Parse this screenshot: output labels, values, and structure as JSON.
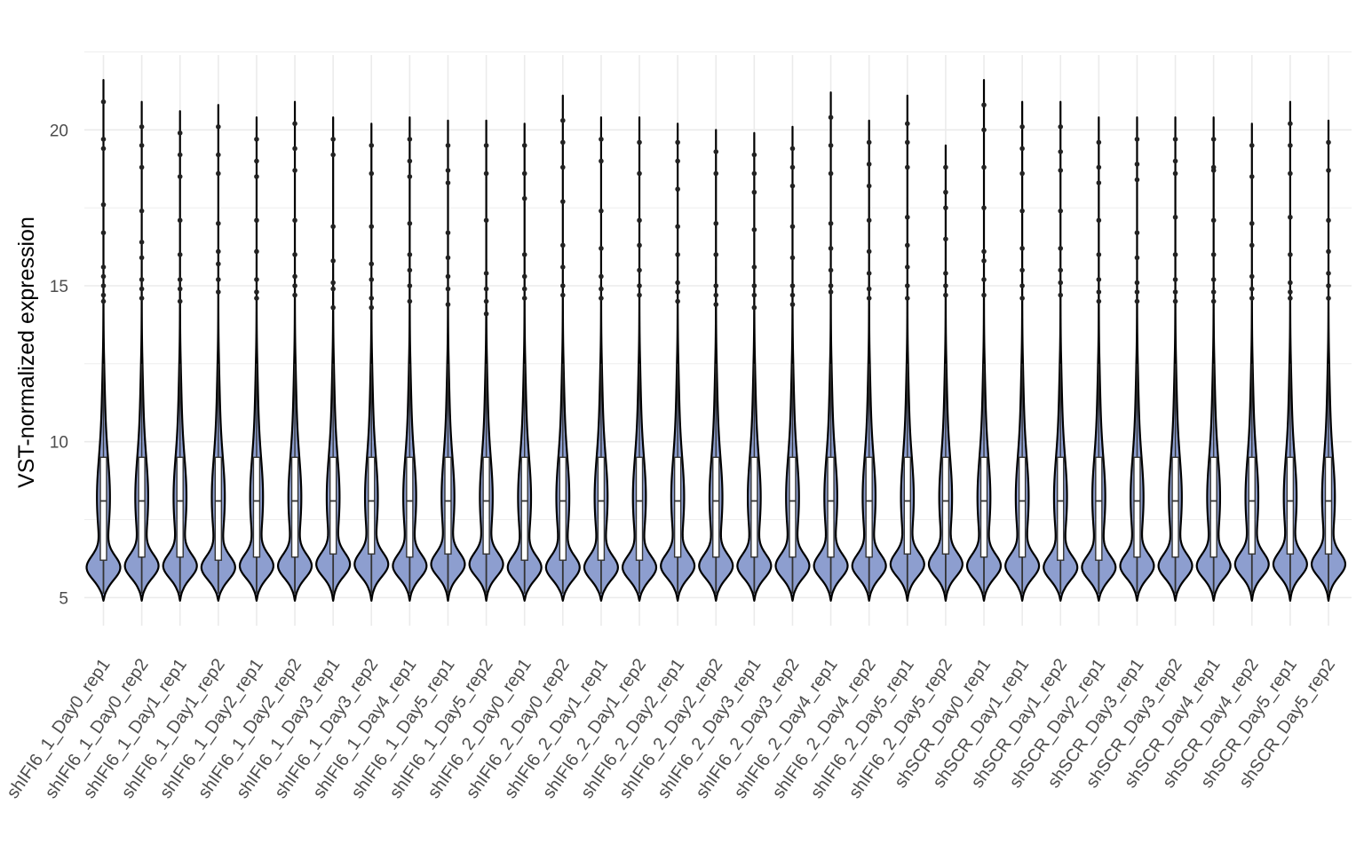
{
  "chart_data": {
    "type": "violin",
    "xlabel": "",
    "ylabel": "VST-normalized expression",
    "ylim": [
      4.1,
      22.4
    ],
    "yticks": [
      5,
      10,
      15,
      20
    ],
    "grid": true,
    "legend": "none",
    "colors": {
      "violin_fill": "#8d9ecf",
      "outline": "#000000",
      "box_fill": "#ffffff",
      "box_stroke": "#333333",
      "grid": "#ebebeb",
      "point": "#222222"
    },
    "categories": [
      "shIFI6_1_Day0_rep1",
      "shIFI6_1_Day0_rep2",
      "shIFI6_1_Day1_rep1",
      "shIFI6_1_Day1_rep2",
      "shIFI6_1_Day2_rep1",
      "shIFI6_1_Day2_rep2",
      "shIFI6_1_Day3_rep1",
      "shIFI6_1_Day3_rep2",
      "shIFI6_1_Day4_rep1",
      "shIFI6_1_Day5_rep1",
      "shIFI6_1_Day5_rep2",
      "shIFI6_2_Day0_rep1",
      "shIFI6_2_Day0_rep2",
      "shIFI6_2_Day1_rep1",
      "shIFI6_2_Day1_rep2",
      "shIFI6_2_Day2_rep1",
      "shIFI6_2_Day2_rep2",
      "shIFI6_2_Day3_rep1",
      "shIFI6_2_Day3_rep2",
      "shIFI6_2_Day4_rep1",
      "shIFI6_2_Day4_rep2",
      "shIFI6_2_Day5_rep1",
      "shIFI6_2_Day5_rep2",
      "shSCR_Day0_rep1",
      "shSCR_Day1_rep1",
      "shSCR_Day1_rep2",
      "shSCR_Day2_rep1",
      "shSCR_Day3_rep1",
      "shSCR_Day3_rep2",
      "shSCR_Day4_rep1",
      "shSCR_Day4_rep2",
      "shSCR_Day5_rep1",
      "shSCR_Day5_rep2"
    ],
    "summary": {
      "min": [
        4.9,
        4.9,
        4.9,
        4.9,
        4.9,
        4.9,
        4.9,
        4.9,
        4.9,
        4.9,
        4.9,
        4.9,
        4.9,
        4.9,
        4.9,
        4.9,
        4.9,
        4.9,
        4.9,
        4.9,
        4.9,
        4.9,
        4.9,
        4.9,
        4.9,
        4.9,
        4.9,
        4.9,
        4.9,
        4.9,
        4.9,
        4.9,
        4.9
      ],
      "q1": [
        6.2,
        6.3,
        6.3,
        6.2,
        6.3,
        6.3,
        6.4,
        6.4,
        6.3,
        6.4,
        6.4,
        6.2,
        6.2,
        6.2,
        6.2,
        6.3,
        6.3,
        6.3,
        6.3,
        6.3,
        6.3,
        6.4,
        6.4,
        6.3,
        6.3,
        6.2,
        6.2,
        6.3,
        6.3,
        6.3,
        6.4,
        6.4,
        6.4
      ],
      "median": [
        8.1,
        8.1,
        8.1,
        8.1,
        8.1,
        8.1,
        8.1,
        8.1,
        8.1,
        8.1,
        8.1,
        8.1,
        8.1,
        8.1,
        8.1,
        8.1,
        8.1,
        8.1,
        8.1,
        8.1,
        8.1,
        8.1,
        8.1,
        8.1,
        8.1,
        8.1,
        8.1,
        8.1,
        8.1,
        8.1,
        8.1,
        8.1,
        8.1
      ],
      "q3": [
        9.5,
        9.5,
        9.5,
        9.5,
        9.5,
        9.5,
        9.5,
        9.5,
        9.5,
        9.5,
        9.5,
        9.5,
        9.5,
        9.5,
        9.5,
        9.5,
        9.5,
        9.5,
        9.5,
        9.5,
        9.5,
        9.5,
        9.5,
        9.5,
        9.5,
        9.5,
        9.5,
        9.5,
        9.5,
        9.5,
        9.5,
        9.5,
        9.5
      ],
      "max": [
        21.6,
        20.9,
        20.6,
        20.8,
        20.4,
        20.9,
        20.4,
        20.2,
        20.4,
        20.3,
        20.3,
        20.2,
        21.1,
        20.4,
        20.4,
        20.2,
        20.0,
        19.9,
        20.1,
        21.2,
        20.3,
        21.1,
        19.5,
        21.6,
        20.9,
        20.9,
        20.4,
        20.4,
        20.4,
        20.4,
        20.2,
        20.9,
        20.3
      ]
    },
    "outliers": [
      [
        20.9,
        19.7,
        19.4,
        17.6,
        16.7,
        15.6,
        15.3,
        15.0,
        14.7,
        14.5
      ],
      [
        20.1,
        19.5,
        18.8,
        17.4,
        16.4,
        15.9,
        15.2,
        14.9,
        14.6
      ],
      [
        19.9,
        19.2,
        18.5,
        17.1,
        16.0,
        15.2,
        14.9,
        14.5
      ],
      [
        20.1,
        19.2,
        18.6,
        17.0,
        16.1,
        15.7,
        15.2,
        14.8
      ],
      [
        19.7,
        19.0,
        18.5,
        17.1,
        16.1,
        15.2,
        14.8,
        14.6
      ],
      [
        20.2,
        19.4,
        18.7,
        17.1,
        16.0,
        15.3,
        15.0,
        14.7
      ],
      [
        19.7,
        19.2,
        16.9,
        15.8,
        15.1,
        14.9,
        14.3
      ],
      [
        19.5,
        18.6,
        16.9,
        15.7,
        15.2,
        14.6,
        14.3
      ],
      [
        19.7,
        19.0,
        18.5,
        17.0,
        16.0,
        15.5,
        15.0,
        14.5
      ],
      [
        19.5,
        18.7,
        18.3,
        16.7,
        15.9,
        15.3,
        14.9,
        14.4
      ],
      [
        19.5,
        18.6,
        17.1,
        15.4,
        14.9,
        14.5,
        14.1
      ],
      [
        19.5,
        18.6,
        17.8,
        16.0,
        15.3,
        14.9,
        14.6
      ],
      [
        20.3,
        19.6,
        18.8,
        17.7,
        16.3,
        15.6,
        15.0,
        14.7
      ],
      [
        19.7,
        19.0,
        17.4,
        16.2,
        15.3,
        14.9,
        14.6
      ],
      [
        19.6,
        18.6,
        17.1,
        16.3,
        15.5,
        15.0,
        14.7
      ],
      [
        19.6,
        19.0,
        18.1,
        16.9,
        16.0,
        15.1,
        14.8,
        14.5
      ],
      [
        19.3,
        18.6,
        17.0,
        16.0,
        15.0,
        14.7,
        14.4
      ],
      [
        19.2,
        18.6,
        18.0,
        16.8,
        15.6,
        15.0,
        14.7,
        14.3
      ],
      [
        19.4,
        18.8,
        18.2,
        16.9,
        15.9,
        15.0,
        14.7,
        14.4
      ],
      [
        20.4,
        19.5,
        18.6,
        17.0,
        16.2,
        15.5,
        15.0,
        14.8
      ],
      [
        19.6,
        18.9,
        18.2,
        17.1,
        16.1,
        15.4,
        14.9,
        14.6
      ],
      [
        20.2,
        19.6,
        18.8,
        17.2,
        16.3,
        15.6,
        15.0,
        14.6
      ],
      [
        18.8,
        18.0,
        17.5,
        16.5,
        15.4,
        15.0,
        14.7
      ],
      [
        20.8,
        20.0,
        18.8,
        17.5,
        16.1,
        15.8,
        15.2,
        14.7
      ],
      [
        20.1,
        19.4,
        18.6,
        17.4,
        16.2,
        15.5,
        15.0,
        14.6
      ],
      [
        20.1,
        19.3,
        18.7,
        17.4,
        16.2,
        15.5,
        15.1,
        14.7
      ],
      [
        19.6,
        18.8,
        18.3,
        17.1,
        16.0,
        15.2,
        14.8,
        14.5
      ],
      [
        19.7,
        18.9,
        18.4,
        16.7,
        15.9,
        15.1,
        14.8,
        14.5
      ],
      [
        19.7,
        19.0,
        18.6,
        17.2,
        16.0,
        15.2,
        14.8,
        14.5
      ],
      [
        19.7,
        18.8,
        18.7,
        17.1,
        16.0,
        15.2,
        14.8,
        14.5
      ],
      [
        19.5,
        18.5,
        17.0,
        16.3,
        15.3,
        14.9,
        14.6
      ],
      [
        20.2,
        19.5,
        18.6,
        17.2,
        16.0,
        15.1,
        14.8,
        14.6
      ],
      [
        19.6,
        18.7,
        17.1,
        16.1,
        15.4,
        15.0,
        14.6
      ]
    ]
  }
}
